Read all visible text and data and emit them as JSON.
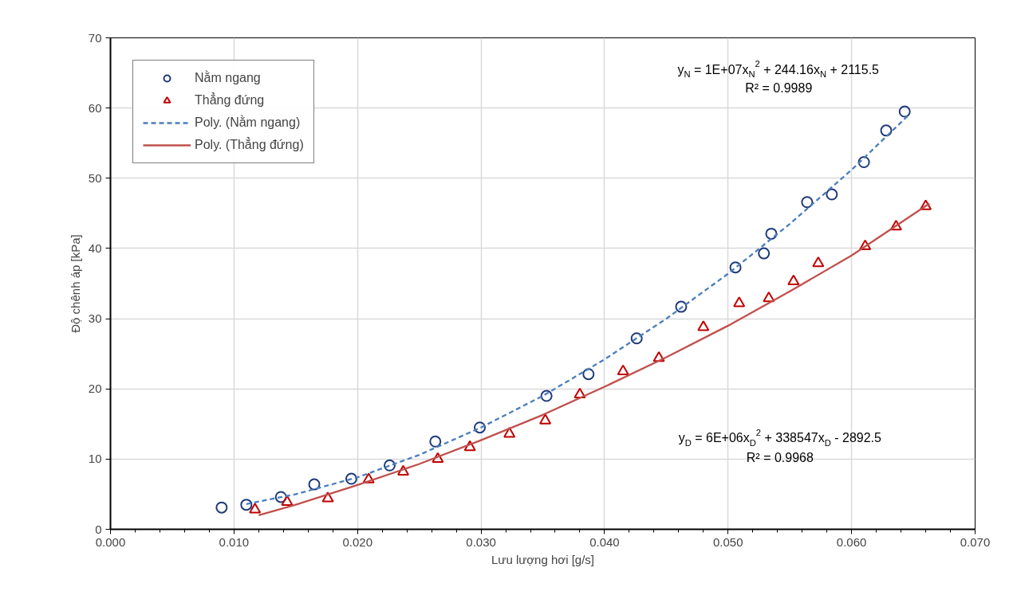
{
  "chart_data": {
    "type": "scatter",
    "xlabel": "Lưu lượng hơi [g/s]",
    "ylabel": "Độ chênh áp [kPa]",
    "xlim": [
      0,
      0.07
    ],
    "ylim": [
      0,
      70
    ],
    "xticks": [
      {
        "value": 0,
        "label": "0.000"
      },
      {
        "value": 0.01,
        "label": "0.010"
      },
      {
        "value": 0.02,
        "label": "0.020"
      },
      {
        "value": 0.03,
        "label": "0.030"
      },
      {
        "value": 0.04,
        "label": "0.040"
      },
      {
        "value": 0.05,
        "label": "0.050"
      },
      {
        "value": 0.06,
        "label": "0.060"
      },
      {
        "value": 0.07,
        "label": "0.070"
      }
    ],
    "yticks": [
      0,
      10,
      20,
      30,
      40,
      50,
      60,
      70
    ],
    "grid": true,
    "legend": "top left",
    "series": [
      {
        "name": "Nằm ngang",
        "marker": "circle",
        "color": "#1f3a7a",
        "x": [
          0.009,
          0.011,
          0.0138,
          0.0165,
          0.0195,
          0.0226,
          0.0263,
          0.0299,
          0.0353,
          0.0387,
          0.0426,
          0.0462,
          0.0506,
          0.0529,
          0.0535,
          0.0564,
          0.0584,
          0.061,
          0.0628,
          0.0643
        ],
        "values": [
          3.1,
          3.5,
          4.6,
          6.4,
          7.2,
          9.1,
          12.5,
          14.5,
          19.0,
          22.1,
          27.2,
          31.7,
          37.3,
          39.3,
          42.1,
          46.6,
          47.7,
          52.3,
          56.8,
          59.5
        ]
      },
      {
        "name": "Thẳng đứng",
        "marker": "triangle",
        "color": "#c00000",
        "x": [
          0.0117,
          0.0143,
          0.0176,
          0.0209,
          0.0237,
          0.0265,
          0.0291,
          0.0323,
          0.0352,
          0.038,
          0.0415,
          0.0444,
          0.048,
          0.0509,
          0.0533,
          0.0553,
          0.0573,
          0.0611,
          0.0636,
          0.066
        ],
        "values": [
          2.8,
          3.9,
          4.4,
          7.1,
          8.2,
          10.0,
          11.7,
          13.6,
          15.5,
          19.2,
          22.5,
          24.4,
          28.8,
          32.2,
          32.9,
          35.3,
          37.9,
          40.3,
          43.1,
          46.0
        ]
      },
      {
        "name": "Poly. (Nằm ngang)",
        "type": "line",
        "line_style": "dashed",
        "color": "#4a7ebb",
        "x": [
          0.011,
          0.015,
          0.02,
          0.025,
          0.03,
          0.035,
          0.04,
          0.045,
          0.05,
          0.055,
          0.06,
          0.0645
        ],
        "values": [
          3.6,
          5.0,
          7.4,
          10.6,
          14.5,
          19.0,
          24.2,
          30.0,
          36.4,
          43.5,
          51.2,
          58.8
        ]
      },
      {
        "name": "Poly. (Thẳng đứng)",
        "type": "line",
        "line_style": "solid",
        "color": "#c0504d",
        "x": [
          0.012,
          0.015,
          0.02,
          0.025,
          0.03,
          0.035,
          0.04,
          0.045,
          0.05,
          0.055,
          0.06,
          0.0663
        ],
        "values": [
          2.0,
          3.5,
          6.3,
          9.3,
          12.7,
          16.3,
          20.3,
          24.5,
          29.0,
          33.9,
          39.0,
          46.4
        ]
      }
    ],
    "annotations": [
      "y$_{N}$ = 1E+07x$_{N}$$^{2}$ + 244.16x$_{N}$ + 2115.5",
      "R² = 0.9989",
      "y$_{D}$ = 6E+06x$_{D}$$^{2}$ + 338547x$_{D}$ - 2892.5",
      "R² = 0.9968"
    ]
  }
}
